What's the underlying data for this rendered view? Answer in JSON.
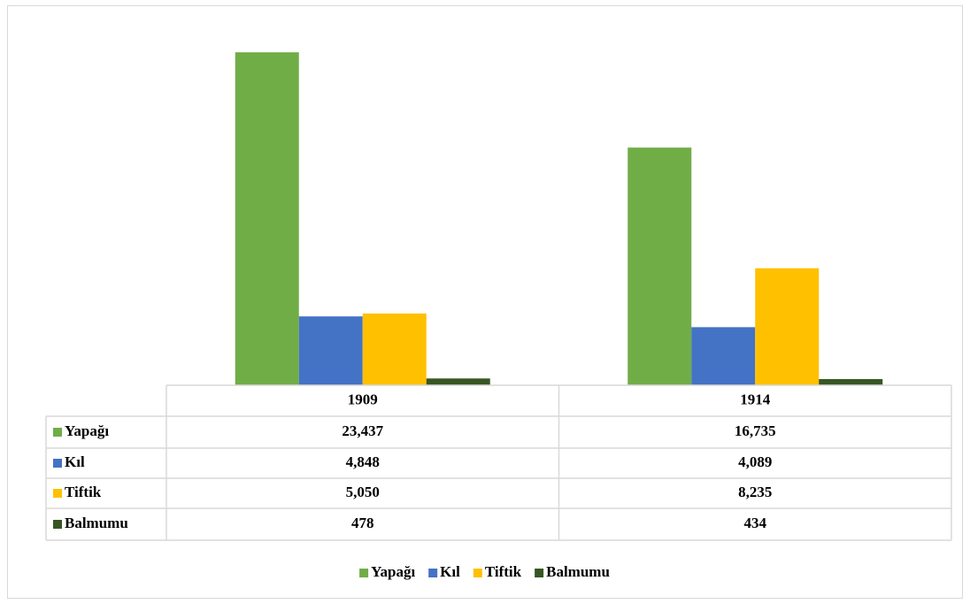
{
  "chart_data": {
    "type": "bar",
    "categories": [
      "1909",
      "1914"
    ],
    "series": [
      {
        "name": "Yapağı",
        "color": "#70ad47",
        "values": [
          23437,
          16735
        ],
        "value_labels": [
          "23,437",
          "16,735"
        ]
      },
      {
        "name": "Kıl",
        "color": "#4472c4",
        "values": [
          4848,
          4089
        ],
        "value_labels": [
          "4,848",
          "4,089"
        ]
      },
      {
        "name": "Tiftik",
        "color": "#ffc000",
        "values": [
          5050,
          8235
        ],
        "value_labels": [
          "5,050",
          "8,235"
        ]
      },
      {
        "name": "Balmumu",
        "color": "#375623",
        "values": [
          478,
          434
        ],
        "value_labels": [
          "478",
          "434"
        ]
      }
    ],
    "ylim": [
      0,
      25000
    ],
    "legend": "bottom"
  }
}
